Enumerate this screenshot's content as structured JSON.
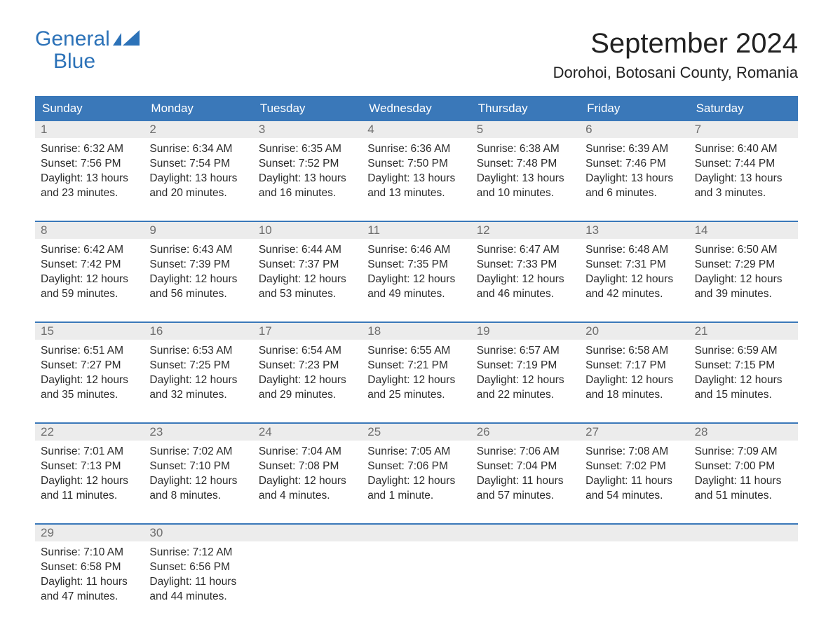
{
  "brand": {
    "word1": "General",
    "word2": "Blue",
    "color": "#2c72b8"
  },
  "title": "September 2024",
  "location": "Dorohoi, Botosani County, Romania",
  "colors": {
    "header_bg": "#3a78b9",
    "header_text": "#ffffff",
    "daynum_bg": "#ececec",
    "daynum_text": "#6e6e6e",
    "body_text": "#2b2b2b",
    "week_border": "#3a78b9",
    "page_bg": "#ffffff"
  },
  "fonts": {
    "title_size_pt": 30,
    "location_size_pt": 17,
    "dayheader_size_pt": 13,
    "body_size_pt": 12
  },
  "layout": {
    "columns": 7,
    "rows": 5,
    "leading_blanks": 0
  },
  "day_labels": [
    "Sunday",
    "Monday",
    "Tuesday",
    "Wednesday",
    "Thursday",
    "Friday",
    "Saturday"
  ],
  "days": [
    {
      "n": "1",
      "sr": "Sunrise: 6:32 AM",
      "ss": "Sunset: 7:56 PM",
      "d1": "Daylight: 13 hours",
      "d2": "and 23 minutes."
    },
    {
      "n": "2",
      "sr": "Sunrise: 6:34 AM",
      "ss": "Sunset: 7:54 PM",
      "d1": "Daylight: 13 hours",
      "d2": "and 20 minutes."
    },
    {
      "n": "3",
      "sr": "Sunrise: 6:35 AM",
      "ss": "Sunset: 7:52 PM",
      "d1": "Daylight: 13 hours",
      "d2": "and 16 minutes."
    },
    {
      "n": "4",
      "sr": "Sunrise: 6:36 AM",
      "ss": "Sunset: 7:50 PM",
      "d1": "Daylight: 13 hours",
      "d2": "and 13 minutes."
    },
    {
      "n": "5",
      "sr": "Sunrise: 6:38 AM",
      "ss": "Sunset: 7:48 PM",
      "d1": "Daylight: 13 hours",
      "d2": "and 10 minutes."
    },
    {
      "n": "6",
      "sr": "Sunrise: 6:39 AM",
      "ss": "Sunset: 7:46 PM",
      "d1": "Daylight: 13 hours",
      "d2": "and 6 minutes."
    },
    {
      "n": "7",
      "sr": "Sunrise: 6:40 AM",
      "ss": "Sunset: 7:44 PM",
      "d1": "Daylight: 13 hours",
      "d2": "and 3 minutes."
    },
    {
      "n": "8",
      "sr": "Sunrise: 6:42 AM",
      "ss": "Sunset: 7:42 PM",
      "d1": "Daylight: 12 hours",
      "d2": "and 59 minutes."
    },
    {
      "n": "9",
      "sr": "Sunrise: 6:43 AM",
      "ss": "Sunset: 7:39 PM",
      "d1": "Daylight: 12 hours",
      "d2": "and 56 minutes."
    },
    {
      "n": "10",
      "sr": "Sunrise: 6:44 AM",
      "ss": "Sunset: 7:37 PM",
      "d1": "Daylight: 12 hours",
      "d2": "and 53 minutes."
    },
    {
      "n": "11",
      "sr": "Sunrise: 6:46 AM",
      "ss": "Sunset: 7:35 PM",
      "d1": "Daylight: 12 hours",
      "d2": "and 49 minutes."
    },
    {
      "n": "12",
      "sr": "Sunrise: 6:47 AM",
      "ss": "Sunset: 7:33 PM",
      "d1": "Daylight: 12 hours",
      "d2": "and 46 minutes."
    },
    {
      "n": "13",
      "sr": "Sunrise: 6:48 AM",
      "ss": "Sunset: 7:31 PM",
      "d1": "Daylight: 12 hours",
      "d2": "and 42 minutes."
    },
    {
      "n": "14",
      "sr": "Sunrise: 6:50 AM",
      "ss": "Sunset: 7:29 PM",
      "d1": "Daylight: 12 hours",
      "d2": "and 39 minutes."
    },
    {
      "n": "15",
      "sr": "Sunrise: 6:51 AM",
      "ss": "Sunset: 7:27 PM",
      "d1": "Daylight: 12 hours",
      "d2": "and 35 minutes."
    },
    {
      "n": "16",
      "sr": "Sunrise: 6:53 AM",
      "ss": "Sunset: 7:25 PM",
      "d1": "Daylight: 12 hours",
      "d2": "and 32 minutes."
    },
    {
      "n": "17",
      "sr": "Sunrise: 6:54 AM",
      "ss": "Sunset: 7:23 PM",
      "d1": "Daylight: 12 hours",
      "d2": "and 29 minutes."
    },
    {
      "n": "18",
      "sr": "Sunrise: 6:55 AM",
      "ss": "Sunset: 7:21 PM",
      "d1": "Daylight: 12 hours",
      "d2": "and 25 minutes."
    },
    {
      "n": "19",
      "sr": "Sunrise: 6:57 AM",
      "ss": "Sunset: 7:19 PM",
      "d1": "Daylight: 12 hours",
      "d2": "and 22 minutes."
    },
    {
      "n": "20",
      "sr": "Sunrise: 6:58 AM",
      "ss": "Sunset: 7:17 PM",
      "d1": "Daylight: 12 hours",
      "d2": "and 18 minutes."
    },
    {
      "n": "21",
      "sr": "Sunrise: 6:59 AM",
      "ss": "Sunset: 7:15 PM",
      "d1": "Daylight: 12 hours",
      "d2": "and 15 minutes."
    },
    {
      "n": "22",
      "sr": "Sunrise: 7:01 AM",
      "ss": "Sunset: 7:13 PM",
      "d1": "Daylight: 12 hours",
      "d2": "and 11 minutes."
    },
    {
      "n": "23",
      "sr": "Sunrise: 7:02 AM",
      "ss": "Sunset: 7:10 PM",
      "d1": "Daylight: 12 hours",
      "d2": "and 8 minutes."
    },
    {
      "n": "24",
      "sr": "Sunrise: 7:04 AM",
      "ss": "Sunset: 7:08 PM",
      "d1": "Daylight: 12 hours",
      "d2": "and 4 minutes."
    },
    {
      "n": "25",
      "sr": "Sunrise: 7:05 AM",
      "ss": "Sunset: 7:06 PM",
      "d1": "Daylight: 12 hours",
      "d2": "and 1 minute."
    },
    {
      "n": "26",
      "sr": "Sunrise: 7:06 AM",
      "ss": "Sunset: 7:04 PM",
      "d1": "Daylight: 11 hours",
      "d2": "and 57 minutes."
    },
    {
      "n": "27",
      "sr": "Sunrise: 7:08 AM",
      "ss": "Sunset: 7:02 PM",
      "d1": "Daylight: 11 hours",
      "d2": "and 54 minutes."
    },
    {
      "n": "28",
      "sr": "Sunrise: 7:09 AM",
      "ss": "Sunset: 7:00 PM",
      "d1": "Daylight: 11 hours",
      "d2": "and 51 minutes."
    },
    {
      "n": "29",
      "sr": "Sunrise: 7:10 AM",
      "ss": "Sunset: 6:58 PM",
      "d1": "Daylight: 11 hours",
      "d2": "and 47 minutes."
    },
    {
      "n": "30",
      "sr": "Sunrise: 7:12 AM",
      "ss": "Sunset: 6:56 PM",
      "d1": "Daylight: 11 hours",
      "d2": "and 44 minutes."
    }
  ]
}
